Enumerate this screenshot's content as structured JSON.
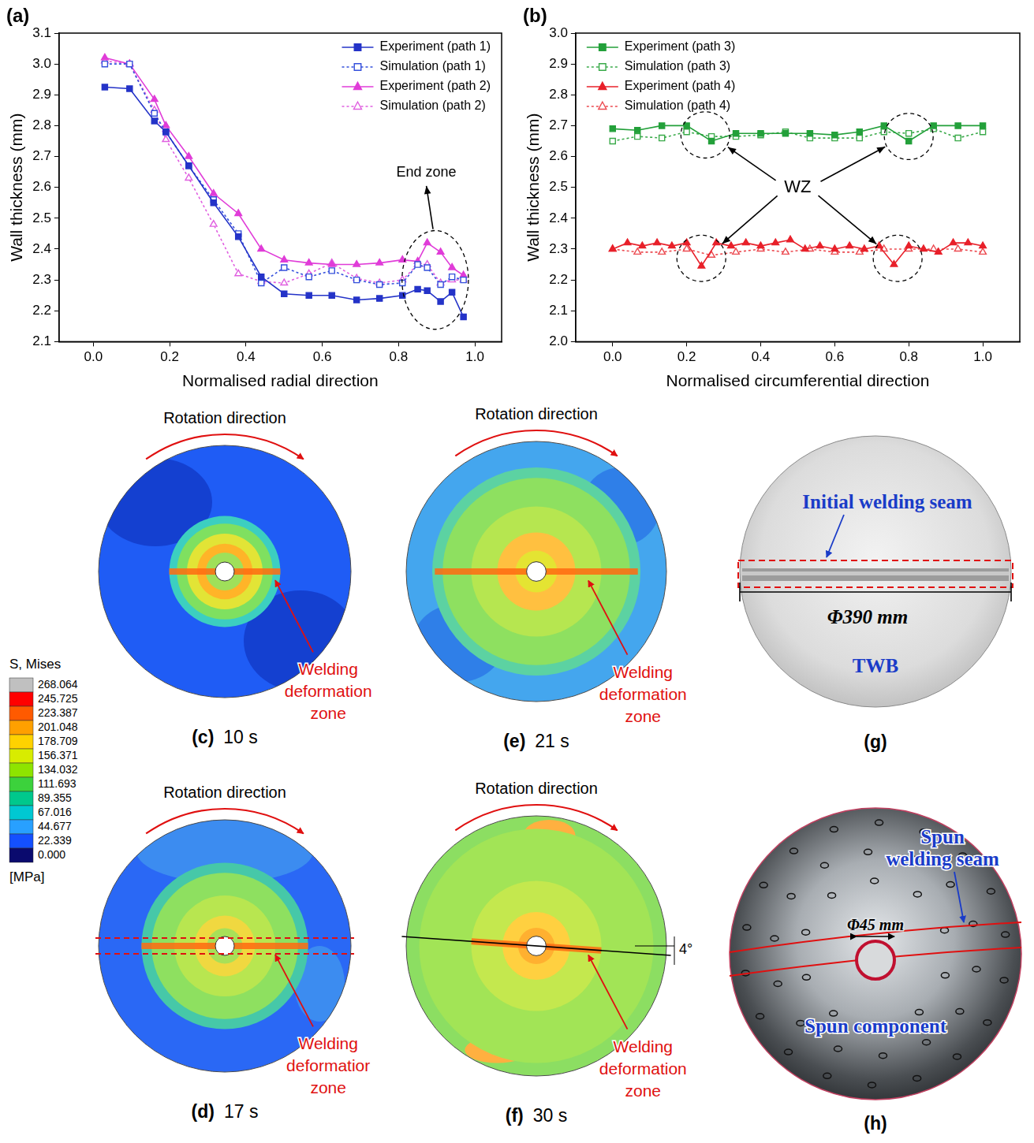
{
  "chart_data": [
    {
      "type": "line",
      "panel": "(a)",
      "x_label": "Normalised radial direction",
      "y_label": "Wall thickness (mm)",
      "xlim": [
        -0.09,
        1.07
      ],
      "xticks": [
        {
          "value": 0,
          "label": "0.0"
        },
        0.2,
        0.4,
        0.6,
        0.8,
        {
          "value": 1,
          "label": "1.0"
        }
      ],
      "ylim": [
        2.1,
        3.1
      ],
      "yticks": [
        2.1,
        2.2,
        2.3,
        2.4,
        2.5,
        2.6,
        2.7,
        2.8,
        2.9,
        {
          "value": 3,
          "label": "3.0"
        },
        3.1
      ],
      "grid": false,
      "legend": "upper right",
      "annotations": [
        "End zone"
      ],
      "series": [
        {
          "name": "Experiment (path 1)",
          "color": "#2433c8",
          "marker": "square",
          "line_style": "solid",
          "x": [
            0.03,
            0.095,
            0.16,
            0.19,
            0.25,
            0.315,
            0.38,
            0.44,
            0.5,
            0.565,
            0.625,
            0.69,
            0.75,
            0.81,
            0.85,
            0.875,
            0.91,
            0.94,
            0.97
          ],
          "values": [
            2.925,
            2.92,
            2.815,
            2.78,
            2.67,
            2.55,
            2.44,
            2.31,
            2.255,
            2.25,
            2.25,
            2.235,
            2.24,
            2.25,
            2.27,
            2.265,
            2.23,
            2.26,
            2.18
          ]
        },
        {
          "name": "Simulation (path 1)",
          "color": "#3550dc",
          "marker": "square-open",
          "line_style": "dotted",
          "x": [
            0.03,
            0.095,
            0.16,
            0.19,
            0.25,
            0.315,
            0.38,
            0.44,
            0.5,
            0.565,
            0.625,
            0.69,
            0.75,
            0.81,
            0.85,
            0.875,
            0.91,
            0.94,
            0.97
          ],
          "values": [
            3.0,
            3.0,
            2.84,
            2.78,
            2.67,
            2.56,
            2.45,
            2.29,
            2.34,
            2.31,
            2.33,
            2.3,
            2.285,
            2.29,
            2.35,
            2.34,
            2.285,
            2.31,
            2.3
          ]
        },
        {
          "name": "Experiment (path 2)",
          "color": "#e03cd8",
          "marker": "triangle",
          "line_style": "solid",
          "x": [
            0.03,
            0.095,
            0.16,
            0.19,
            0.25,
            0.315,
            0.38,
            0.44,
            0.5,
            0.565,
            0.625,
            0.69,
            0.75,
            0.81,
            0.85,
            0.875,
            0.91,
            0.94,
            0.97
          ],
          "values": [
            3.02,
            3.0,
            2.885,
            2.8,
            2.7,
            2.58,
            2.515,
            2.4,
            2.365,
            2.355,
            2.35,
            2.35,
            2.355,
            2.365,
            2.36,
            2.42,
            2.39,
            2.34,
            2.315
          ]
        },
        {
          "name": "Simulation (path 2)",
          "color": "#e060e0",
          "marker": "triangle-open",
          "line_style": "dotted",
          "x": [
            0.03,
            0.095,
            0.16,
            0.19,
            0.25,
            0.315,
            0.38,
            0.44,
            0.5,
            0.565,
            0.625,
            0.69,
            0.75,
            0.81,
            0.85,
            0.875,
            0.91,
            0.94,
            0.97
          ],
          "values": [
            3.01,
            3.0,
            2.85,
            2.755,
            2.63,
            2.48,
            2.32,
            2.295,
            2.29,
            2.32,
            2.355,
            2.305,
            2.29,
            2.3,
            2.35,
            2.35,
            2.29,
            2.3,
            2.3
          ]
        }
      ]
    },
    {
      "type": "line",
      "panel": "(b)",
      "x_label": "Normalised circumferential direction",
      "y_label": "Wall thickness (mm)",
      "xlim": [
        -0.1,
        1.1
      ],
      "xticks": [
        {
          "value": 0,
          "label": "0.0"
        },
        0.2,
        0.4,
        0.6,
        0.8,
        {
          "value": 1,
          "label": "1.0"
        }
      ],
      "ylim": [
        2.0,
        3.0
      ],
      "yticks": [
        {
          "value": 2,
          "label": "2.0"
        },
        2.1,
        2.2,
        2.3,
        2.4,
        2.5,
        2.6,
        2.7,
        2.8,
        2.9,
        {
          "value": 3,
          "label": "3.0"
        }
      ],
      "grid": false,
      "legend": "upper left",
      "annotations": [
        "WZ"
      ],
      "series": [
        {
          "name": "Experiment (path 3)",
          "color": "#23a03a",
          "marker": "square",
          "line_style": "solid",
          "x": [
            0,
            0.067,
            0.133,
            0.2,
            0.267,
            0.333,
            0.4,
            0.467,
            0.533,
            0.6,
            0.667,
            0.733,
            0.8,
            0.867,
            0.933,
            1.0
          ],
          "values": [
            2.69,
            2.685,
            2.7,
            2.7,
            2.65,
            2.675,
            2.675,
            2.675,
            2.675,
            2.67,
            2.68,
            2.7,
            2.65,
            2.7,
            2.7,
            2.7
          ]
        },
        {
          "name": "Simulation (path 3)",
          "color": "#3aaa4a",
          "marker": "square-open",
          "line_style": "dotted",
          "x": [
            0,
            0.067,
            0.133,
            0.2,
            0.267,
            0.333,
            0.4,
            0.467,
            0.533,
            0.6,
            0.667,
            0.733,
            0.8,
            0.867,
            0.933,
            1.0
          ],
          "values": [
            2.65,
            2.665,
            2.66,
            2.68,
            2.665,
            2.665,
            2.67,
            2.68,
            2.66,
            2.66,
            2.66,
            2.68,
            2.675,
            2.69,
            2.66,
            2.68
          ]
        },
        {
          "name": "Experiment (path 4)",
          "color": "#e8202a",
          "marker": "triangle",
          "line_style": "solid",
          "x": [
            0,
            0.04,
            0.08,
            0.12,
            0.16,
            0.2,
            0.24,
            0.28,
            0.32,
            0.36,
            0.4,
            0.44,
            0.48,
            0.52,
            0.56,
            0.6,
            0.64,
            0.68,
            0.72,
            0.76,
            0.8,
            0.84,
            0.88,
            0.92,
            0.96,
            1.0
          ],
          "values": [
            2.3,
            2.32,
            2.31,
            2.32,
            2.31,
            2.32,
            2.245,
            2.32,
            2.31,
            2.32,
            2.31,
            2.32,
            2.33,
            2.3,
            2.31,
            2.3,
            2.31,
            2.3,
            2.31,
            2.25,
            2.31,
            2.3,
            2.29,
            2.32,
            2.32,
            2.31
          ]
        },
        {
          "name": "Simulation (path 4)",
          "color": "#ec4a50",
          "marker": "triangle-open",
          "line_style": "dotted",
          "x": [
            0,
            0.067,
            0.133,
            0.2,
            0.267,
            0.333,
            0.4,
            0.467,
            0.533,
            0.6,
            0.667,
            0.733,
            0.8,
            0.867,
            0.933,
            1.0
          ],
          "values": [
            2.3,
            2.29,
            2.29,
            2.3,
            2.28,
            2.29,
            2.3,
            2.29,
            2.3,
            2.29,
            2.29,
            2.3,
            2.3,
            2.3,
            2.3,
            2.29
          ]
        }
      ]
    }
  ],
  "colorbar": {
    "title": "S, Mises",
    "unit": "[MPa]",
    "ticks": [
      268.064,
      245.725,
      223.387,
      201.048,
      178.709,
      156.371,
      134.032,
      111.693,
      89.355,
      67.016,
      44.677,
      22.339,
      {
        "value": 0,
        "label": "0.000"
      }
    ]
  },
  "panels": [
    {
      "label": "(c)",
      "caption": "10 s",
      "title": "Rotation direction",
      "annotation": "Welding deformation zone"
    },
    {
      "label": "(d)",
      "caption": "17 s",
      "title": "Rotation direction",
      "annotation": "Welding deformatior zone"
    },
    {
      "label": "(e)",
      "caption": "21 s",
      "title": "Rotation direction",
      "annotation": "Welding deformation zone"
    },
    {
      "label": "(f)",
      "caption": "30 s",
      "title": "Rotation direction",
      "annotation": "Welding deformation zone",
      "angle_label": "4°"
    },
    {
      "label": "(g)",
      "seam_label": "Initial welding seam",
      "dimension_label": "Φ390 mm",
      "part_label": "TWB"
    },
    {
      "label": "(h)",
      "seam_label": "Spun welding seam",
      "dimension_label": "Φ45 mm",
      "part_label": "Spun component"
    }
  ]
}
